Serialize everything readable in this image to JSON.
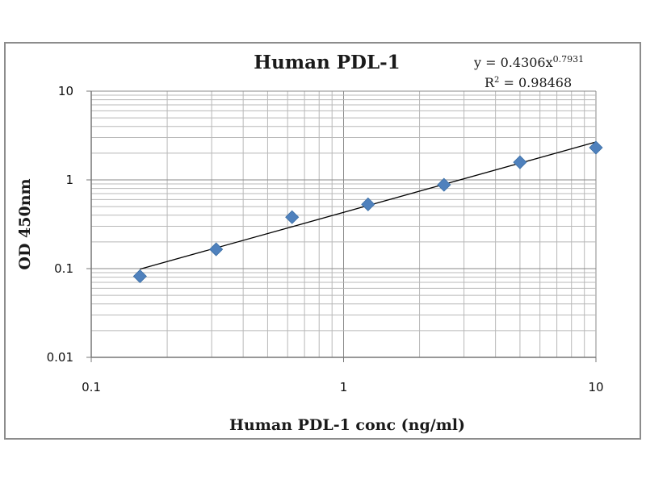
{
  "chart_data": {
    "type": "scatter",
    "title": "Human PDL-1",
    "xlabel": "Human PDL-1 conc (ng/ml)",
    "ylabel": "OD 450nm",
    "xscale": "log",
    "yscale": "log",
    "xlim": [
      0.1,
      10
    ],
    "ylim": [
      0.01,
      10
    ],
    "xticks": [
      "0.1",
      "1",
      "10"
    ],
    "yticks": [
      "10",
      "1",
      "0.1",
      "0.01"
    ],
    "grid": true,
    "series": [
      {
        "name": "data",
        "marker": "diamond",
        "color": "#4f81bd",
        "x": [
          0.156,
          0.3125,
          0.625,
          1.25,
          2.5,
          5,
          10
        ],
        "y": [
          0.082,
          0.165,
          0.38,
          0.53,
          0.88,
          1.58,
          2.31
        ]
      }
    ],
    "trendline": {
      "type": "power",
      "a": 0.4306,
      "b": 0.7931,
      "x_range": [
        0.156,
        10
      ],
      "color": "#000000"
    },
    "annotation": {
      "equation_prefix": "y = 0.4306x",
      "equation_exponent": "0.7931",
      "r2_prefix": "R",
      "r2_sup": "2",
      "r2_value": " = 0.98468"
    }
  }
}
